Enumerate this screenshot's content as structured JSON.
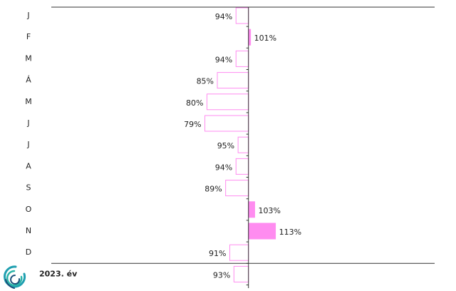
{
  "chart_data": {
    "type": "bar",
    "orientation": "horizontal",
    "categories": [
      "J",
      "F",
      "M",
      "Á",
      "M",
      "J",
      "J",
      "A",
      "S",
      "O",
      "N",
      "D",
      "2023. év"
    ],
    "values": [
      94,
      101,
      94,
      85,
      80,
      79,
      95,
      94,
      89,
      103,
      113,
      91,
      93
    ],
    "value_labels": [
      "94%",
      "101%",
      "94%",
      "85%",
      "80%",
      "79%",
      "95%",
      "94%",
      "89%",
      "103%",
      "113%",
      "91%",
      "93%"
    ],
    "baseline": 100,
    "xlim": [
      5,
      200
    ],
    "color": "#ff8cf0"
  }
}
